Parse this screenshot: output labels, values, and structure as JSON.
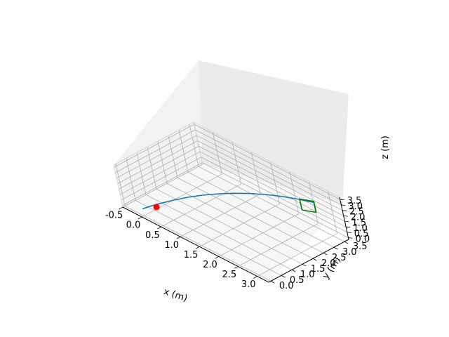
{
  "chart_data": {
    "type": "line",
    "projection": "3d",
    "xlabel": "x (m)",
    "ylabel": "y (m)",
    "zlabel": "z (m)",
    "xlim": [
      -0.5,
      3.3
    ],
    "ylim": [
      -0.1,
      3.7
    ],
    "zlim": [
      -0.15,
      3.7
    ],
    "x_ticks": [
      "-0.5",
      "0.0",
      "0.5",
      "1.0",
      "1.5",
      "2.0",
      "2.5",
      "3.0"
    ],
    "y_ticks": [
      "0.0",
      "0.5",
      "1.0",
      "1.5",
      "2.0",
      "2.5",
      "3.0",
      "3.5"
    ],
    "z_ticks": [
      "0.0",
      "0.5",
      "1.0",
      "1.5",
      "2.0",
      "2.5",
      "3.0",
      "3.5"
    ],
    "grid": true,
    "colors": {
      "trajectory": "#1f77b4",
      "target": "#008000",
      "start_marker": "#ff0000",
      "pane_xz": "#f2f2f2",
      "pane_yz": "#ebebeb",
      "pane_floor": "#f7f7f7",
      "grid": "#b0b0b0"
    },
    "series": [
      {
        "kind": "trajectory",
        "x": [
          0.0,
          0.27,
          0.55,
          0.82,
          1.09,
          1.37,
          1.64,
          1.91,
          2.18,
          2.46,
          2.73,
          3.0
        ],
        "y": [
          0.0,
          0.27,
          0.55,
          0.82,
          1.09,
          1.37,
          1.64,
          1.91,
          2.18,
          2.46,
          2.73,
          3.0
        ],
        "z": [
          0.5,
          1.13,
          1.69,
          2.18,
          2.59,
          2.93,
          3.19,
          3.38,
          3.5,
          3.54,
          3.5,
          3.4
        ]
      },
      {
        "kind": "target",
        "x": [
          2.6,
          3.0,
          3.0,
          2.6,
          2.6
        ],
        "y": [
          3.0,
          3.0,
          3.0,
          3.0,
          3.0
        ],
        "z": [
          2.0,
          2.5,
          3.5,
          3.0,
          2.0
        ]
      },
      {
        "kind": "marker",
        "x": [
          0.25
        ],
        "y": [
          0.25
        ],
        "z": [
          0.85
        ]
      }
    ]
  }
}
